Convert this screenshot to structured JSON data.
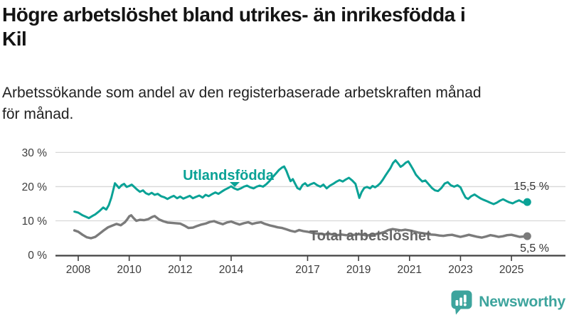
{
  "title": {
    "full": "Högre arbetslöshet bland utrikes- än inrikesfödda i Kil",
    "lines": [
      "Högre arbetslöshet bland utrikes- än inrikesfödda i",
      "Kil"
    ]
  },
  "subtitle": {
    "full": "Arbetssökande som andel av den registerbaserade arbetskraften månad för månad.",
    "lines": [
      "Arbetssökande som andel av den registerbaserade arbetskraften månad",
      "för månad."
    ]
  },
  "logo": {
    "text": "Newsworthy",
    "color": "#3da49d",
    "icon": "newsworthy-speech-bubble-bar-chart-icon"
  },
  "colors": {
    "accent_teal": "#0aa296",
    "series_gray": "#7b7b7b",
    "gray_label": "#676767",
    "grid": "#d8d8d8",
    "axis": "#404040",
    "tick_text": "#3c3c3c",
    "end_label_text": "#333333"
  },
  "chart_data": {
    "type": "line",
    "title": "Högre arbetslöshet bland utrikes- än inrikesfödda i Kil",
    "subtitle": "Arbetssökande som andel av den registerbaserade arbetskraften månad för månad.",
    "xlabel": "",
    "ylabel": "",
    "x_unit": "year (monthly observations)",
    "x_range": [
      2007.85,
      2025.62
    ],
    "ylim": [
      0,
      30
    ],
    "grid": "horizontal",
    "legend_position": "inline-labels",
    "y_ticks": [
      {
        "label": "0 %",
        "value": 0
      },
      {
        "label": "10 %",
        "value": 10
      },
      {
        "label": "20 %",
        "value": 20
      },
      {
        "label": "30 %",
        "value": 30
      }
    ],
    "x_ticks": [
      {
        "label": "2008",
        "value": 2008
      },
      {
        "label": "2010",
        "value": 2010
      },
      {
        "label": "2012",
        "value": 2012
      },
      {
        "label": "2014",
        "value": 2014
      },
      {
        "label": "2017",
        "value": 2017
      },
      {
        "label": "2019",
        "value": 2019
      },
      {
        "label": "2021",
        "value": 2021
      },
      {
        "label": "2023",
        "value": 2023
      },
      {
        "label": "2025",
        "value": 2025
      }
    ],
    "series": [
      {
        "name": "Utlandsfödda",
        "color": "#0aa296",
        "end_label": "15,5 %",
        "end_value": 15.5,
        "points": [
          [
            2007.85,
            12.7
          ],
          [
            2008.0,
            12.4
          ],
          [
            2008.17,
            11.6
          ],
          [
            2008.3,
            11.2
          ],
          [
            2008.42,
            10.8
          ],
          [
            2008.55,
            11.4
          ],
          [
            2008.67,
            11.9
          ],
          [
            2008.84,
            12.9
          ],
          [
            2008.98,
            13.9
          ],
          [
            2009.1,
            13.3
          ],
          [
            2009.2,
            14.6
          ],
          [
            2009.3,
            16.8
          ],
          [
            2009.44,
            21.0
          ],
          [
            2009.52,
            20.3
          ],
          [
            2009.6,
            19.6
          ],
          [
            2009.7,
            20.4
          ],
          [
            2009.8,
            20.8
          ],
          [
            2009.9,
            19.9
          ],
          [
            2010.0,
            20.2
          ],
          [
            2010.1,
            20.6
          ],
          [
            2010.2,
            19.9
          ],
          [
            2010.3,
            19.2
          ],
          [
            2010.42,
            18.5
          ],
          [
            2010.54,
            18.9
          ],
          [
            2010.65,
            18.1
          ],
          [
            2010.77,
            17.7
          ],
          [
            2010.88,
            18.2
          ],
          [
            2011.0,
            17.6
          ],
          [
            2011.12,
            17.9
          ],
          [
            2011.25,
            17.2
          ],
          [
            2011.38,
            16.9
          ],
          [
            2011.5,
            16.4
          ],
          [
            2011.62,
            16.9
          ],
          [
            2011.75,
            17.3
          ],
          [
            2011.88,
            16.6
          ],
          [
            2012.0,
            17.1
          ],
          [
            2012.12,
            16.5
          ],
          [
            2012.25,
            16.9
          ],
          [
            2012.38,
            17.3
          ],
          [
            2012.5,
            16.6
          ],
          [
            2012.62,
            17.0
          ],
          [
            2012.75,
            17.4
          ],
          [
            2012.88,
            16.8
          ],
          [
            2013.0,
            17.6
          ],
          [
            2013.12,
            17.2
          ],
          [
            2013.25,
            17.8
          ],
          [
            2013.38,
            18.3
          ],
          [
            2013.5,
            17.9
          ],
          [
            2013.62,
            18.5
          ],
          [
            2013.75,
            19.1
          ],
          [
            2013.88,
            19.6
          ],
          [
            2014.0,
            20.1
          ],
          [
            2014.12,
            19.5
          ],
          [
            2014.25,
            19.1
          ],
          [
            2014.38,
            19.5
          ],
          [
            2014.5,
            20.0
          ],
          [
            2014.62,
            20.3
          ],
          [
            2014.75,
            19.8
          ],
          [
            2014.88,
            19.5
          ],
          [
            2015.0,
            20.0
          ],
          [
            2015.12,
            20.3
          ],
          [
            2015.25,
            20.0
          ],
          [
            2015.38,
            20.7
          ],
          [
            2015.5,
            21.6
          ],
          [
            2015.62,
            22.7
          ],
          [
            2015.75,
            23.8
          ],
          [
            2015.88,
            24.9
          ],
          [
            2016.0,
            25.6
          ],
          [
            2016.08,
            25.9
          ],
          [
            2016.17,
            24.6
          ],
          [
            2016.25,
            23.0
          ],
          [
            2016.33,
            21.6
          ],
          [
            2016.42,
            22.2
          ],
          [
            2016.5,
            21.0
          ],
          [
            2016.6,
            19.6
          ],
          [
            2016.7,
            19.2
          ],
          [
            2016.8,
            20.5
          ],
          [
            2016.9,
            21.0
          ],
          [
            2017.0,
            20.2
          ],
          [
            2017.12,
            20.7
          ],
          [
            2017.25,
            21.1
          ],
          [
            2017.38,
            20.4
          ],
          [
            2017.5,
            20.0
          ],
          [
            2017.62,
            20.6
          ],
          [
            2017.75,
            19.5
          ],
          [
            2017.88,
            20.3
          ],
          [
            2018.0,
            20.8
          ],
          [
            2018.12,
            21.4
          ],
          [
            2018.25,
            21.9
          ],
          [
            2018.38,
            21.5
          ],
          [
            2018.5,
            22.1
          ],
          [
            2018.62,
            22.6
          ],
          [
            2018.75,
            21.8
          ],
          [
            2018.88,
            20.8
          ],
          [
            2018.95,
            18.9
          ],
          [
            2019.03,
            16.7
          ],
          [
            2019.12,
            18.4
          ],
          [
            2019.22,
            19.6
          ],
          [
            2019.33,
            19.9
          ],
          [
            2019.45,
            19.5
          ],
          [
            2019.55,
            20.2
          ],
          [
            2019.65,
            19.8
          ],
          [
            2019.75,
            20.3
          ],
          [
            2019.85,
            21.0
          ],
          [
            2019.95,
            22.0
          ],
          [
            2020.05,
            23.2
          ],
          [
            2020.15,
            24.3
          ],
          [
            2020.25,
            25.4
          ],
          [
            2020.35,
            26.9
          ],
          [
            2020.45,
            27.7
          ],
          [
            2020.55,
            26.8
          ],
          [
            2020.65,
            25.8
          ],
          [
            2020.75,
            26.3
          ],
          [
            2020.85,
            27.0
          ],
          [
            2020.95,
            27.4
          ],
          [
            2021.05,
            26.2
          ],
          [
            2021.15,
            24.9
          ],
          [
            2021.25,
            23.5
          ],
          [
            2021.38,
            22.4
          ],
          [
            2021.5,
            21.5
          ],
          [
            2021.62,
            21.8
          ],
          [
            2021.75,
            20.7
          ],
          [
            2021.88,
            19.6
          ],
          [
            2022.0,
            18.9
          ],
          [
            2022.12,
            18.7
          ],
          [
            2022.25,
            19.6
          ],
          [
            2022.38,
            20.9
          ],
          [
            2022.5,
            21.3
          ],
          [
            2022.62,
            20.4
          ],
          [
            2022.75,
            20.0
          ],
          [
            2022.88,
            20.4
          ],
          [
            2023.0,
            19.8
          ],
          [
            2023.1,
            18.2
          ],
          [
            2023.2,
            16.8
          ],
          [
            2023.3,
            16.4
          ],
          [
            2023.42,
            17.2
          ],
          [
            2023.55,
            17.7
          ],
          [
            2023.67,
            17.1
          ],
          [
            2023.8,
            16.5
          ],
          [
            2023.92,
            16.1
          ],
          [
            2024.05,
            15.7
          ],
          [
            2024.17,
            15.3
          ],
          [
            2024.3,
            14.9
          ],
          [
            2024.42,
            15.3
          ],
          [
            2024.55,
            15.9
          ],
          [
            2024.67,
            16.3
          ],
          [
            2024.8,
            15.8
          ],
          [
            2024.92,
            15.4
          ],
          [
            2025.05,
            15.1
          ],
          [
            2025.17,
            15.6
          ],
          [
            2025.3,
            16.0
          ],
          [
            2025.42,
            15.5
          ],
          [
            2025.52,
            15.2
          ],
          [
            2025.62,
            15.5
          ]
        ]
      },
      {
        "name": "Total arbetslöshet",
        "color": "#7b7b7b",
        "end_label": "5,5 %",
        "end_value": 5.5,
        "points": [
          [
            2007.85,
            7.2
          ],
          [
            2008.0,
            6.8
          ],
          [
            2008.17,
            5.9
          ],
          [
            2008.33,
            5.2
          ],
          [
            2008.5,
            4.9
          ],
          [
            2008.67,
            5.3
          ],
          [
            2008.83,
            6.2
          ],
          [
            2009.0,
            7.2
          ],
          [
            2009.17,
            8.1
          ],
          [
            2009.33,
            8.6
          ],
          [
            2009.5,
            9.1
          ],
          [
            2009.67,
            8.7
          ],
          [
            2009.83,
            9.6
          ],
          [
            2009.92,
            10.4
          ],
          [
            2010.0,
            11.3
          ],
          [
            2010.08,
            11.6
          ],
          [
            2010.17,
            10.8
          ],
          [
            2010.28,
            10.0
          ],
          [
            2010.42,
            10.3
          ],
          [
            2010.58,
            10.2
          ],
          [
            2010.75,
            10.5
          ],
          [
            2010.92,
            11.2
          ],
          [
            2011.0,
            11.4
          ],
          [
            2011.17,
            10.4
          ],
          [
            2011.33,
            9.9
          ],
          [
            2011.5,
            9.5
          ],
          [
            2011.67,
            9.4
          ],
          [
            2011.83,
            9.3
          ],
          [
            2012.0,
            9.2
          ],
          [
            2012.17,
            8.6
          ],
          [
            2012.33,
            7.9
          ],
          [
            2012.5,
            8.0
          ],
          [
            2012.67,
            8.5
          ],
          [
            2012.83,
            8.9
          ],
          [
            2013.0,
            9.2
          ],
          [
            2013.17,
            9.7
          ],
          [
            2013.33,
            9.9
          ],
          [
            2013.5,
            9.4
          ],
          [
            2013.67,
            9.0
          ],
          [
            2013.83,
            9.5
          ],
          [
            2014.0,
            9.8
          ],
          [
            2014.17,
            9.3
          ],
          [
            2014.33,
            8.9
          ],
          [
            2014.5,
            9.3
          ],
          [
            2014.67,
            9.6
          ],
          [
            2014.83,
            9.1
          ],
          [
            2015.0,
            9.4
          ],
          [
            2015.17,
            9.6
          ],
          [
            2015.33,
            9.1
          ],
          [
            2015.5,
            8.7
          ],
          [
            2015.67,
            8.4
          ],
          [
            2015.83,
            8.1
          ],
          [
            2016.0,
            7.9
          ],
          [
            2016.17,
            7.5
          ],
          [
            2016.33,
            7.1
          ],
          [
            2016.5,
            6.8
          ],
          [
            2016.67,
            7.3
          ],
          [
            2016.83,
            7.0
          ],
          [
            2017.0,
            6.8
          ],
          [
            2017.17,
            6.5
          ],
          [
            2017.33,
            6.3
          ],
          [
            2017.5,
            6.2
          ],
          [
            2017.67,
            6.0
          ],
          [
            2017.83,
            6.2
          ],
          [
            2018.0,
            6.0
          ],
          [
            2018.17,
            5.8
          ],
          [
            2018.33,
            6.0
          ],
          [
            2018.5,
            5.8
          ],
          [
            2018.67,
            5.7
          ],
          [
            2018.83,
            5.9
          ],
          [
            2019.0,
            6.1
          ],
          [
            2019.17,
            5.9
          ],
          [
            2019.33,
            5.7
          ],
          [
            2019.5,
            5.9
          ],
          [
            2019.67,
            6.1
          ],
          [
            2019.83,
            6.3
          ],
          [
            2020.0,
            6.7
          ],
          [
            2020.17,
            7.3
          ],
          [
            2020.33,
            7.6
          ],
          [
            2020.5,
            7.4
          ],
          [
            2020.67,
            7.2
          ],
          [
            2020.83,
            7.4
          ],
          [
            2021.0,
            7.2
          ],
          [
            2021.17,
            6.9
          ],
          [
            2021.33,
            6.6
          ],
          [
            2021.5,
            6.4
          ],
          [
            2021.67,
            6.2
          ],
          [
            2021.83,
            6.0
          ],
          [
            2022.0,
            5.9
          ],
          [
            2022.17,
            5.7
          ],
          [
            2022.33,
            5.6
          ],
          [
            2022.5,
            5.8
          ],
          [
            2022.67,
            5.9
          ],
          [
            2022.83,
            5.6
          ],
          [
            2023.0,
            5.3
          ],
          [
            2023.17,
            5.6
          ],
          [
            2023.33,
            5.9
          ],
          [
            2023.5,
            5.6
          ],
          [
            2023.67,
            5.3
          ],
          [
            2023.83,
            5.1
          ],
          [
            2024.0,
            5.4
          ],
          [
            2024.17,
            5.8
          ],
          [
            2024.33,
            5.6
          ],
          [
            2024.5,
            5.3
          ],
          [
            2024.67,
            5.5
          ],
          [
            2024.83,
            5.8
          ],
          [
            2025.0,
            5.9
          ],
          [
            2025.17,
            5.6
          ],
          [
            2025.33,
            5.3
          ],
          [
            2025.5,
            5.4
          ],
          [
            2025.62,
            5.5
          ]
        ]
      }
    ]
  }
}
